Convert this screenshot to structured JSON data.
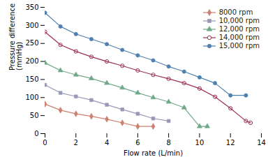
{
  "chart_data": {
    "type": "line",
    "xlabel": "Flow rate (L/min)",
    "ylabel": "Pressure difference\n(mmHg)",
    "xlim": [
      0,
      14
    ],
    "ylim": [
      0,
      350
    ],
    "xticks": [
      0,
      2,
      4,
      6,
      8,
      10,
      12,
      14
    ],
    "yticks": [
      0,
      50,
      100,
      150,
      200,
      250,
      300,
      350
    ],
    "grid": false,
    "legend": "upper right",
    "series": [
      {
        "name": "8000 rpm",
        "color": "#cd8070",
        "marker": "diamond",
        "x": [
          0,
          1,
          2,
          3,
          4,
          5,
          6,
          7
        ],
        "values": [
          82,
          65,
          55,
          48,
          40,
          30,
          20,
          20
        ]
      },
      {
        "name": "10,000 rpm",
        "color": "#9898b8",
        "marker": "square",
        "x": [
          0,
          1,
          2,
          3,
          4,
          5,
          6,
          7,
          8
        ],
        "values": [
          135,
          113,
          103,
          93,
          80,
          67,
          55,
          42,
          35
        ]
      },
      {
        "name": "12,000 rpm",
        "color": "#70a888",
        "marker": "triangle",
        "x": [
          0,
          1,
          2,
          3,
          4,
          5,
          6,
          7,
          8,
          9,
          10,
          10.5
        ],
        "values": [
          196,
          175,
          163,
          153,
          140,
          127,
          113,
          100,
          88,
          72,
          20,
          20
        ]
      },
      {
        "name": "14,000 rpm",
        "color": "#9c3050",
        "marker": "circle-open",
        "x": [
          0,
          1,
          2,
          3,
          4,
          5,
          6,
          7,
          8,
          9,
          10,
          11,
          12,
          13,
          13.3
        ],
        "values": [
          282,
          246,
          228,
          213,
          200,
          188,
          175,
          163,
          152,
          140,
          125,
          102,
          70,
          35,
          30
        ]
      },
      {
        "name": "15,000 rpm",
        "color": "#5080b0",
        "marker": "circle",
        "x": [
          0,
          1,
          2,
          3,
          4,
          5,
          6,
          7,
          8,
          9,
          10,
          11,
          12,
          13
        ],
        "values": [
          335,
          297,
          276,
          262,
          248,
          232,
          217,
          203,
          186,
          172,
          156,
          140,
          106,
          106
        ]
      }
    ]
  }
}
